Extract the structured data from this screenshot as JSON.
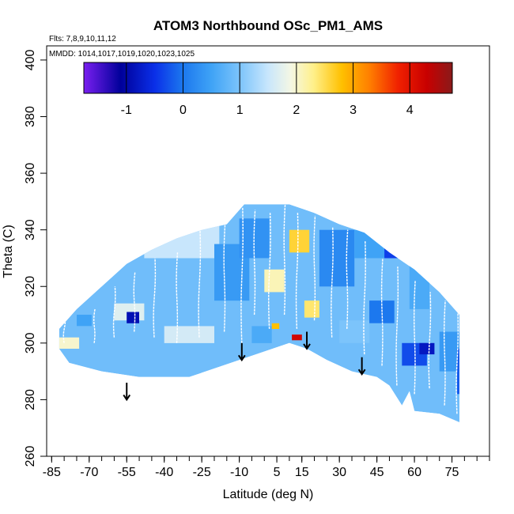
{
  "chart_data": {
    "type": "heatmap",
    "title": "ATOM3 Northbound OSc_PM1_AMS",
    "flights_note": "Flts: 7,8,9,10,11,12",
    "dates_note": "MMDD: 1014,1017,1019,1020,1023,1025",
    "xlabel": "Latitude (deg N)",
    "ylabel": "Theta (C)",
    "xlim": [
      -87,
      90
    ],
    "ylim": [
      260,
      405
    ],
    "xticks": [
      -85,
      -70,
      -55,
      -40,
      -25,
      -10,
      5,
      15,
      30,
      45,
      60,
      75
    ],
    "xtick_labels": [
      "-85",
      "-70",
      "-55",
      "-40",
      "-25",
      "-10",
      "5",
      "15",
      "30",
      "45",
      "60",
      "75"
    ],
    "yticks": [
      260,
      280,
      300,
      320,
      340,
      360,
      380,
      400
    ],
    "ytick_labels": [
      "260",
      "280",
      "300",
      "320",
      "340",
      "360",
      "380",
      "400"
    ],
    "colorbar": {
      "range": [
        -1.75,
        4.75
      ],
      "ticks": [
        -1,
        0,
        1,
        2,
        3,
        4
      ],
      "tick_labels": [
        "-1",
        "0",
        "1",
        "2",
        "3",
        "4"
      ],
      "stops": [
        {
          "value": -1.75,
          "color": "#7a1ff0"
        },
        {
          "value": -1.1,
          "color": "#00009a"
        },
        {
          "value": -0.5,
          "color": "#0a2fe8"
        },
        {
          "value": 0.0,
          "color": "#1c78ee"
        },
        {
          "value": 0.5,
          "color": "#3fa3f6"
        },
        {
          "value": 1.0,
          "color": "#7cc4fb"
        },
        {
          "value": 1.5,
          "color": "#c8e6fc"
        },
        {
          "value": 1.9,
          "color": "#f4f7e4"
        },
        {
          "value": 2.3,
          "color": "#fff08a"
        },
        {
          "value": 2.8,
          "color": "#ffc000"
        },
        {
          "value": 3.3,
          "color": "#ff7d00"
        },
        {
          "value": 3.8,
          "color": "#f02000"
        },
        {
          "value": 4.3,
          "color": "#c80000"
        },
        {
          "value": 4.75,
          "color": "#8a1a1a"
        }
      ]
    },
    "field_envelope": {
      "top": [
        [
          -82,
          305
        ],
        [
          -75,
          312
        ],
        [
          -65,
          320
        ],
        [
          -55,
          328
        ],
        [
          -45,
          333
        ],
        [
          -35,
          337
        ],
        [
          -25,
          340
        ],
        [
          -15,
          342
        ],
        [
          -8,
          349
        ],
        [
          10,
          349
        ],
        [
          20,
          346
        ],
        [
          30,
          342
        ],
        [
          40,
          339
        ],
        [
          50,
          332
        ],
        [
          60,
          326
        ],
        [
          70,
          318
        ],
        [
          78,
          310
        ]
      ],
      "bottom": [
        [
          -82,
          298
        ],
        [
          -78,
          293
        ],
        [
          -65,
          290
        ],
        [
          -50,
          288
        ],
        [
          -30,
          288
        ],
        [
          -10,
          294
        ],
        [
          10,
          300
        ],
        [
          17,
          298
        ],
        [
          25,
          294
        ],
        [
          35,
          290
        ],
        [
          45,
          288
        ],
        [
          50,
          285
        ],
        [
          55,
          278
        ],
        [
          58,
          283
        ],
        [
          60,
          276
        ],
        [
          70,
          275
        ],
        [
          78,
          272
        ]
      ]
    },
    "field_background_value": 0.9,
    "field_patches": [
      {
        "lat": -82,
        "theta": 298,
        "dlat": 8,
        "dtheta": 4,
        "value": 2.0
      },
      {
        "lat": -75,
        "theta": 306,
        "dlat": 6,
        "dtheta": 4,
        "value": 0.5
      },
      {
        "lat": -60,
        "theta": 308,
        "dlat": 12,
        "dtheta": 6,
        "value": 1.7
      },
      {
        "lat": -55,
        "theta": 307,
        "dlat": 5,
        "dtheta": 4,
        "value": -0.9
      },
      {
        "lat": -48,
        "theta": 330,
        "dlat": 30,
        "dtheta": 12,
        "value": 1.5
      },
      {
        "lat": -40,
        "theta": 300,
        "dlat": 20,
        "dtheta": 6,
        "value": 1.6
      },
      {
        "lat": -20,
        "theta": 315,
        "dlat": 14,
        "dtheta": 20,
        "value": 0.4
      },
      {
        "lat": -10,
        "theta": 330,
        "dlat": 12,
        "dtheta": 14,
        "value": 0.3
      },
      {
        "lat": -5,
        "theta": 300,
        "dlat": 8,
        "dtheta": 6,
        "value": 0.6
      },
      {
        "lat": 0,
        "theta": 318,
        "dlat": 8,
        "dtheta": 8,
        "value": 2.1
      },
      {
        "lat": 3,
        "theta": 305,
        "dlat": 3,
        "dtheta": 2,
        "value": 2.8
      },
      {
        "lat": 10,
        "theta": 332,
        "dlat": 8,
        "dtheta": 8,
        "value": 2.6
      },
      {
        "lat": 11,
        "theta": 301,
        "dlat": 4,
        "dtheta": 2,
        "value": 4.2
      },
      {
        "lat": 16,
        "theta": 309,
        "dlat": 6,
        "dtheta": 6,
        "value": 2.4
      },
      {
        "lat": 22,
        "theta": 320,
        "dlat": 14,
        "dtheta": 20,
        "value": 0.2
      },
      {
        "lat": 30,
        "theta": 300,
        "dlat": 12,
        "dtheta": 8,
        "value": 1.0
      },
      {
        "lat": 36,
        "theta": 330,
        "dlat": 14,
        "dtheta": 10,
        "value": 0.5
      },
      {
        "lat": 42,
        "theta": 307,
        "dlat": 10,
        "dtheta": 8,
        "value": 0.0
      },
      {
        "lat": 48,
        "theta": 330,
        "dlat": 6,
        "dtheta": 6,
        "value": -0.4
      },
      {
        "lat": 55,
        "theta": 292,
        "dlat": 10,
        "dtheta": 8,
        "value": -0.3
      },
      {
        "lat": 58,
        "theta": 312,
        "dlat": 8,
        "dtheta": 16,
        "value": 0.6
      },
      {
        "lat": 62,
        "theta": 296,
        "dlat": 6,
        "dtheta": 4,
        "value": -0.8
      },
      {
        "lat": 70,
        "theta": 290,
        "dlat": 8,
        "dtheta": 14,
        "value": 0.4
      },
      {
        "lat": 77,
        "theta": 282,
        "dlat": 3,
        "dtheta": 16,
        "value": -0.2
      }
    ],
    "flight_tracks": [
      {
        "lat": -80,
        "theta_from": 300,
        "theta_to": 310
      },
      {
        "lat": -68,
        "theta_from": 300,
        "theta_to": 312
      },
      {
        "lat": -60,
        "theta_from": 302,
        "theta_to": 320
      },
      {
        "lat": -52,
        "theta_from": 304,
        "theta_to": 325
      },
      {
        "lat": -44,
        "theta_from": 302,
        "theta_to": 330
      },
      {
        "lat": -35,
        "theta_from": 300,
        "theta_to": 332
      },
      {
        "lat": -26,
        "theta_from": 302,
        "theta_to": 340
      },
      {
        "lat": -16,
        "theta_from": 304,
        "theta_to": 342
      },
      {
        "lat": -9,
        "theta_from": 300,
        "theta_to": 348
      },
      {
        "lat": -4,
        "theta_from": 310,
        "theta_to": 347
      },
      {
        "lat": 2,
        "theta_from": 305,
        "theta_to": 346
      },
      {
        "lat": 8,
        "theta_from": 310,
        "theta_to": 349
      },
      {
        "lat": 13,
        "theta_from": 305,
        "theta_to": 346
      },
      {
        "lat": 20,
        "theta_from": 308,
        "theta_to": 345
      },
      {
        "lat": 27,
        "theta_from": 302,
        "theta_to": 341
      },
      {
        "lat": 33,
        "theta_from": 305,
        "theta_to": 340
      },
      {
        "lat": 40,
        "theta_from": 296,
        "theta_to": 336
      },
      {
        "lat": 47,
        "theta_from": 292,
        "theta_to": 330
      },
      {
        "lat": 53,
        "theta_from": 285,
        "theta_to": 327
      },
      {
        "lat": 60,
        "theta_from": 282,
        "theta_to": 322
      },
      {
        "lat": 66,
        "theta_from": 284,
        "theta_to": 318
      },
      {
        "lat": 72,
        "theta_from": 278,
        "theta_to": 315
      },
      {
        "lat": 77,
        "theta_from": 275,
        "theta_to": 312
      }
    ],
    "arrows": [
      {
        "lat": -55,
        "theta_from": 286,
        "theta_to": 280
      },
      {
        "lat": -9,
        "theta_from": 300,
        "theta_to": 294
      },
      {
        "lat": 17,
        "theta_from": 304,
        "theta_to": 298
      },
      {
        "lat": 39,
        "theta_from": 295,
        "theta_to": 289
      }
    ]
  }
}
